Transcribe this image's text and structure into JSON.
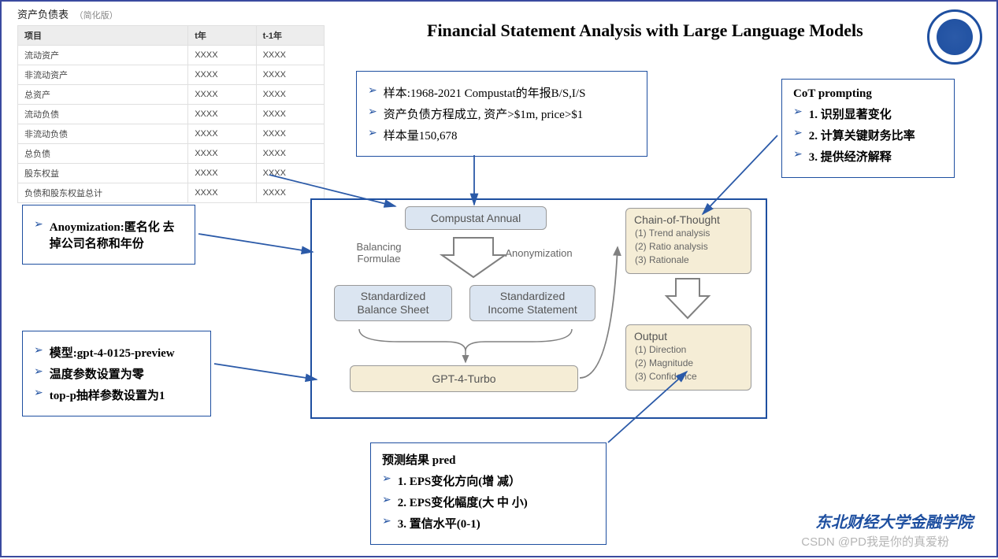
{
  "title": "Financial Statement Analysis with Large Language Models",
  "logo_alt": "东北财经大学",
  "watermark1": "东北财经大学金融学院",
  "watermark2": "CSDN @PD我是你的真爱粉",
  "balance_sheet": {
    "caption": "资产负债表",
    "caption_sub": "（简化版）",
    "columns": [
      "项目",
      "t年",
      "t-1年"
    ],
    "rows": [
      [
        "流动资产",
        "XXXX",
        "XXXX"
      ],
      [
        "非流动资产",
        "XXXX",
        "XXXX"
      ],
      [
        "总资产",
        "XXXX",
        "XXXX"
      ],
      [
        "流动负债",
        "XXXX",
        "XXXX"
      ],
      [
        "非流动负债",
        "XXXX",
        "XXXX"
      ],
      [
        "总负债",
        "XXXX",
        "XXXX"
      ],
      [
        "股东权益",
        "XXXX",
        "XXXX"
      ],
      [
        "负债和股东权益总计",
        "XXXX",
        "XXXX"
      ]
    ]
  },
  "box_sample": {
    "items": [
      "样本:1968-2021 Compustat的年报B/S,I/S",
      "资产负债方程成立, 资产>$1m, price>$1",
      "样本量150,678"
    ]
  },
  "box_cot": {
    "header": "CoT prompting",
    "items": [
      "1. 识别显著变化",
      "2. 计算关键财务比率",
      "3. 提供经济解释"
    ]
  },
  "box_anon": {
    "items": [
      "Anoymization:匿名化 去掉公司名称和年份"
    ]
  },
  "box_model": {
    "items": [
      "模型:gpt-4-0125-preview",
      "温度参数设置为零",
      "top-p抽样参数设置为1"
    ]
  },
  "box_pred": {
    "header": "预测结果 pred",
    "items": [
      "1. EPS变化方向(增 减）",
      "2. EPS变化幅度(大 中 小)",
      "3. 置信水平(0-1)"
    ]
  },
  "flow": {
    "compustat": "Compustat Annual",
    "balancing": "Balancing\nFormulae",
    "anonymization": "Anonymization",
    "std_bs": "Standardized\nBalance Sheet",
    "std_is": "Standardized\nIncome Statement",
    "gpt": "GPT-4-Turbo",
    "cot_box": "Chain-of-Thought",
    "cot_items": [
      "(1)  Trend analysis",
      "(2)  Ratio analysis",
      "(3)  Rationale"
    ],
    "out_box": "Output",
    "out_items": [
      "(1)  Direction",
      "(2)  Magnitude",
      "(3)  Confidence"
    ]
  },
  "colors": {
    "frame": "#1e4fa0",
    "node_blue": "#dbe5f1",
    "node_cream": "#f5edd6",
    "arrow": "#2b5aa8",
    "diagram_stroke": "#808080"
  }
}
